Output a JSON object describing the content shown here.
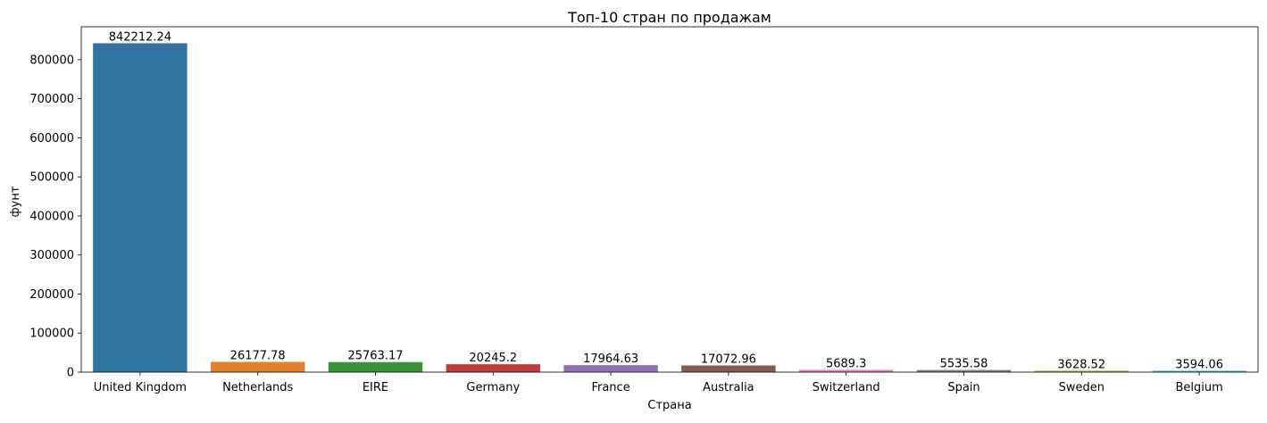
{
  "chart_data": {
    "type": "bar",
    "title": "Топ-10 стран по продажам",
    "xlabel": "Страна",
    "ylabel": "фунт",
    "categories": [
      "United Kingdom",
      "Netherlands",
      "EIRE",
      "Germany",
      "France",
      "Australia",
      "Switzerland",
      "Spain",
      "Sweden",
      "Belgium"
    ],
    "values": [
      842212.24,
      26177.78,
      25763.17,
      20245.2,
      17964.63,
      17072.96,
      5689.3,
      5535.58,
      3628.52,
      3594.06
    ],
    "value_labels": [
      "842212.24",
      "26177.78",
      "25763.17",
      "20245.2",
      "17964.63",
      "17072.96",
      "5689.3",
      "5535.58",
      "3628.52",
      "3594.06"
    ],
    "colors": [
      "#3274a1",
      "#e1812c",
      "#3a923a",
      "#c03d3e",
      "#9372b2",
      "#845b53",
      "#d684bd",
      "#7f7f7f",
      "#a9aa35",
      "#2ebece"
    ],
    "ylim": [
      0,
      884322.85
    ],
    "yticks": [
      0,
      100000,
      200000,
      300000,
      400000,
      500000,
      600000,
      700000,
      800000
    ],
    "ytick_labels": [
      "0",
      "100000",
      "200000",
      "300000",
      "400000",
      "500000",
      "600000",
      "700000",
      "800000"
    ],
    "grid": false,
    "legend": "none"
  }
}
